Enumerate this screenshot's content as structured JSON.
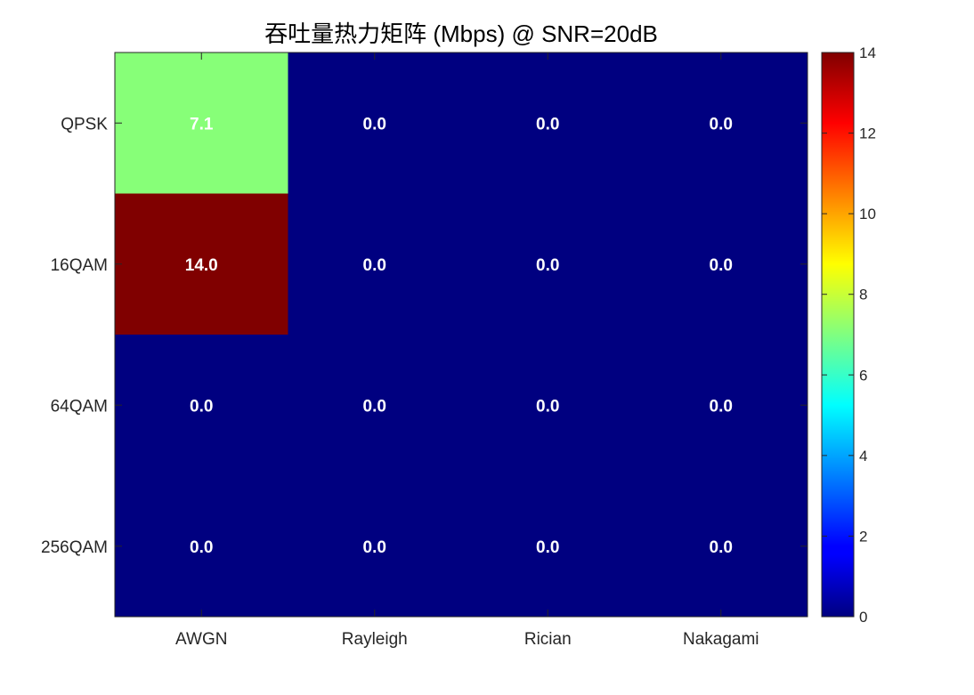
{
  "chart_data": {
    "type": "heatmap",
    "title": "吞吐量热力矩阵 (Mbps) @ SNR=20dB",
    "xlabel": "",
    "ylabel": "",
    "columns": [
      "AWGN",
      "Rayleigh",
      "Rician",
      "Nakagami"
    ],
    "rows": [
      "QPSK",
      "16QAM",
      "64QAM",
      "256QAM"
    ],
    "values": [
      [
        7.1,
        0.0,
        0.0,
        0.0
      ],
      [
        14.0,
        0.0,
        0.0,
        0.0
      ],
      [
        0.0,
        0.0,
        0.0,
        0.0
      ],
      [
        0.0,
        0.0,
        0.0,
        0.0
      ]
    ],
    "value_labels": [
      [
        "7.1",
        "0.0",
        "0.0",
        "0.0"
      ],
      [
        "14.0",
        "0.0",
        "0.0",
        "0.0"
      ],
      [
        "0.0",
        "0.0",
        "0.0",
        "0.0"
      ],
      [
        "0.0",
        "0.0",
        "0.0",
        "0.0"
      ]
    ],
    "colormap": "jet",
    "clim": [
      0,
      14
    ],
    "colorbar": {
      "position": "right",
      "ticks": [
        0,
        2,
        4,
        6,
        8,
        10,
        12,
        14
      ],
      "tick_labels": [
        "0",
        "2",
        "4",
        "6",
        "8",
        "10",
        "12",
        "14"
      ]
    },
    "label_color": "#ffffff",
    "axis_color": "#262626"
  }
}
